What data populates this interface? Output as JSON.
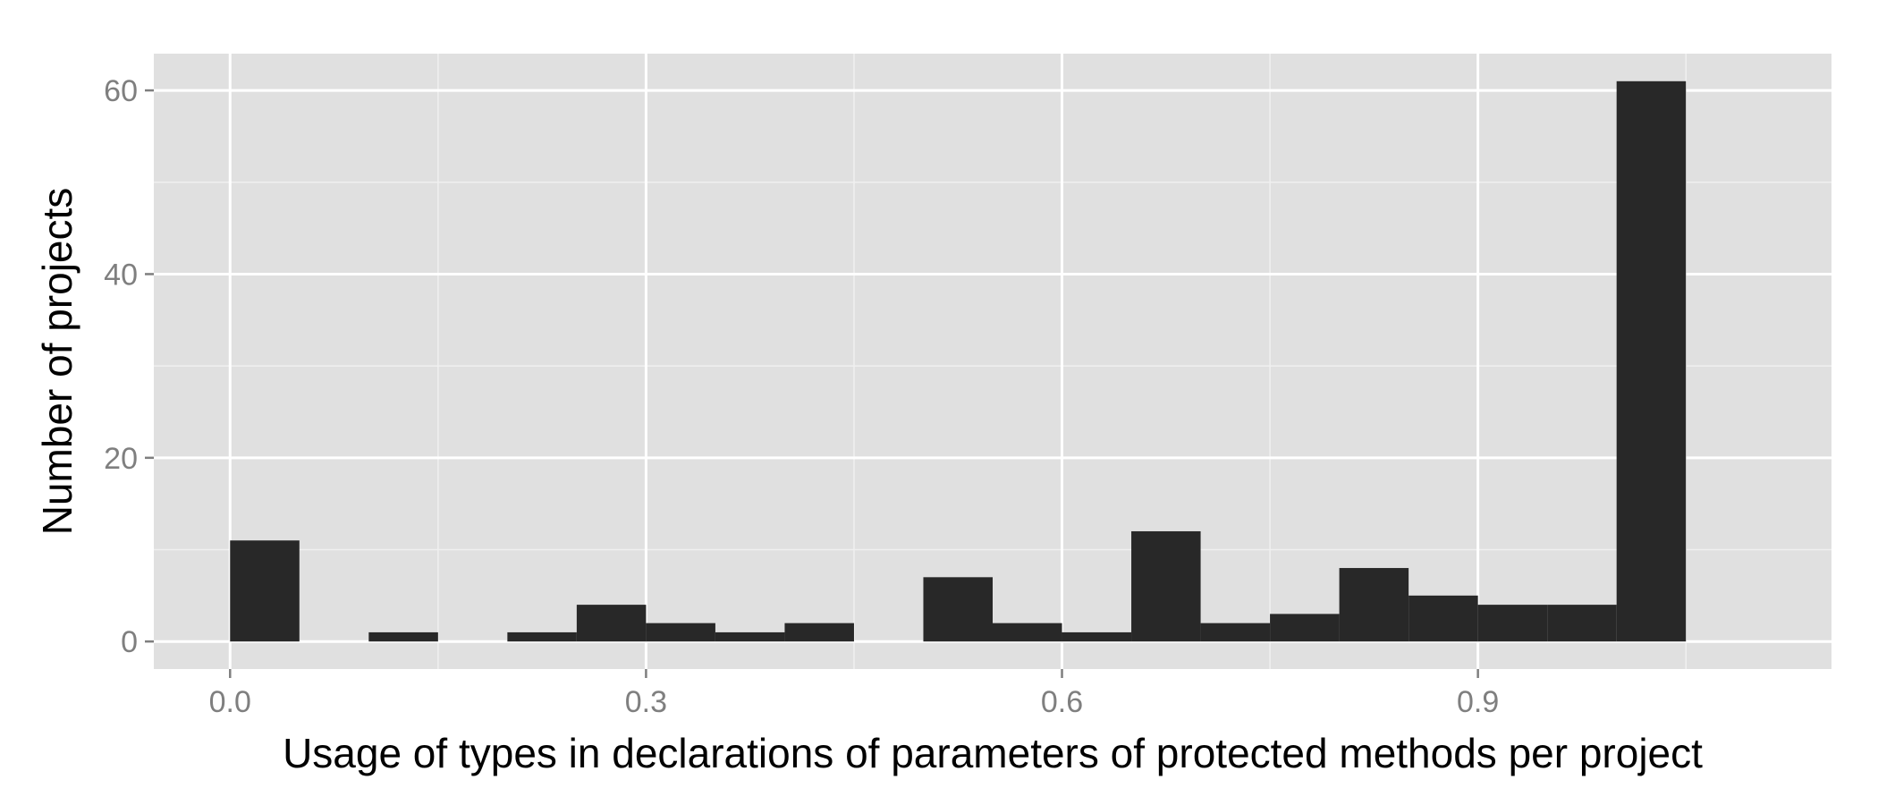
{
  "chart_data": {
    "type": "bar",
    "title": "",
    "xlabel": "Usage of types in declarations of parameters of protected methods per project",
    "ylabel": "Number of projects",
    "bin_width": 0.05,
    "bins": [
      {
        "x0": 0.0,
        "x1": 0.05,
        "count": 11
      },
      {
        "x0": 0.05,
        "x1": 0.1,
        "count": 0
      },
      {
        "x0": 0.1,
        "x1": 0.15,
        "count": 1
      },
      {
        "x0": 0.15,
        "x1": 0.2,
        "count": 0
      },
      {
        "x0": 0.2,
        "x1": 0.25,
        "count": 1
      },
      {
        "x0": 0.25,
        "x1": 0.3,
        "count": 4
      },
      {
        "x0": 0.3,
        "x1": 0.35,
        "count": 2
      },
      {
        "x0": 0.35,
        "x1": 0.4,
        "count": 1
      },
      {
        "x0": 0.4,
        "x1": 0.45,
        "count": 2
      },
      {
        "x0": 0.45,
        "x1": 0.5,
        "count": 0
      },
      {
        "x0": 0.5,
        "x1": 0.55,
        "count": 7
      },
      {
        "x0": 0.55,
        "x1": 0.6,
        "count": 2
      },
      {
        "x0": 0.6,
        "x1": 0.65,
        "count": 1
      },
      {
        "x0": 0.65,
        "x1": 0.7,
        "count": 12
      },
      {
        "x0": 0.7,
        "x1": 0.75,
        "count": 2
      },
      {
        "x0": 0.75,
        "x1": 0.8,
        "count": 3
      },
      {
        "x0": 0.8,
        "x1": 0.85,
        "count": 8
      },
      {
        "x0": 0.85,
        "x1": 0.9,
        "count": 5
      },
      {
        "x0": 0.9,
        "x1": 0.95,
        "count": 4
      },
      {
        "x0": 0.95,
        "x1": 1.0,
        "count": 4
      },
      {
        "x0": 1.0,
        "x1": 1.05,
        "count": 61
      }
    ],
    "xlim": [
      -0.055,
      1.155
    ],
    "ylim": [
      -3,
      64
    ],
    "x_ticks": [
      0.0,
      0.3,
      0.6,
      0.9
    ],
    "x_tick_labels": [
      "0.0",
      "0.3",
      "0.6",
      "0.9"
    ],
    "y_ticks": [
      0,
      20,
      40,
      60
    ],
    "y_tick_labels": [
      "0",
      "20",
      "40",
      "60"
    ],
    "grid": true,
    "colors": {
      "panel_background": "#e0e0e0",
      "grid_major": "#ffffff",
      "grid_minor": "#f0f0f0",
      "bar_fill": "#282828",
      "tick_mark": "#7f7f7f"
    }
  }
}
